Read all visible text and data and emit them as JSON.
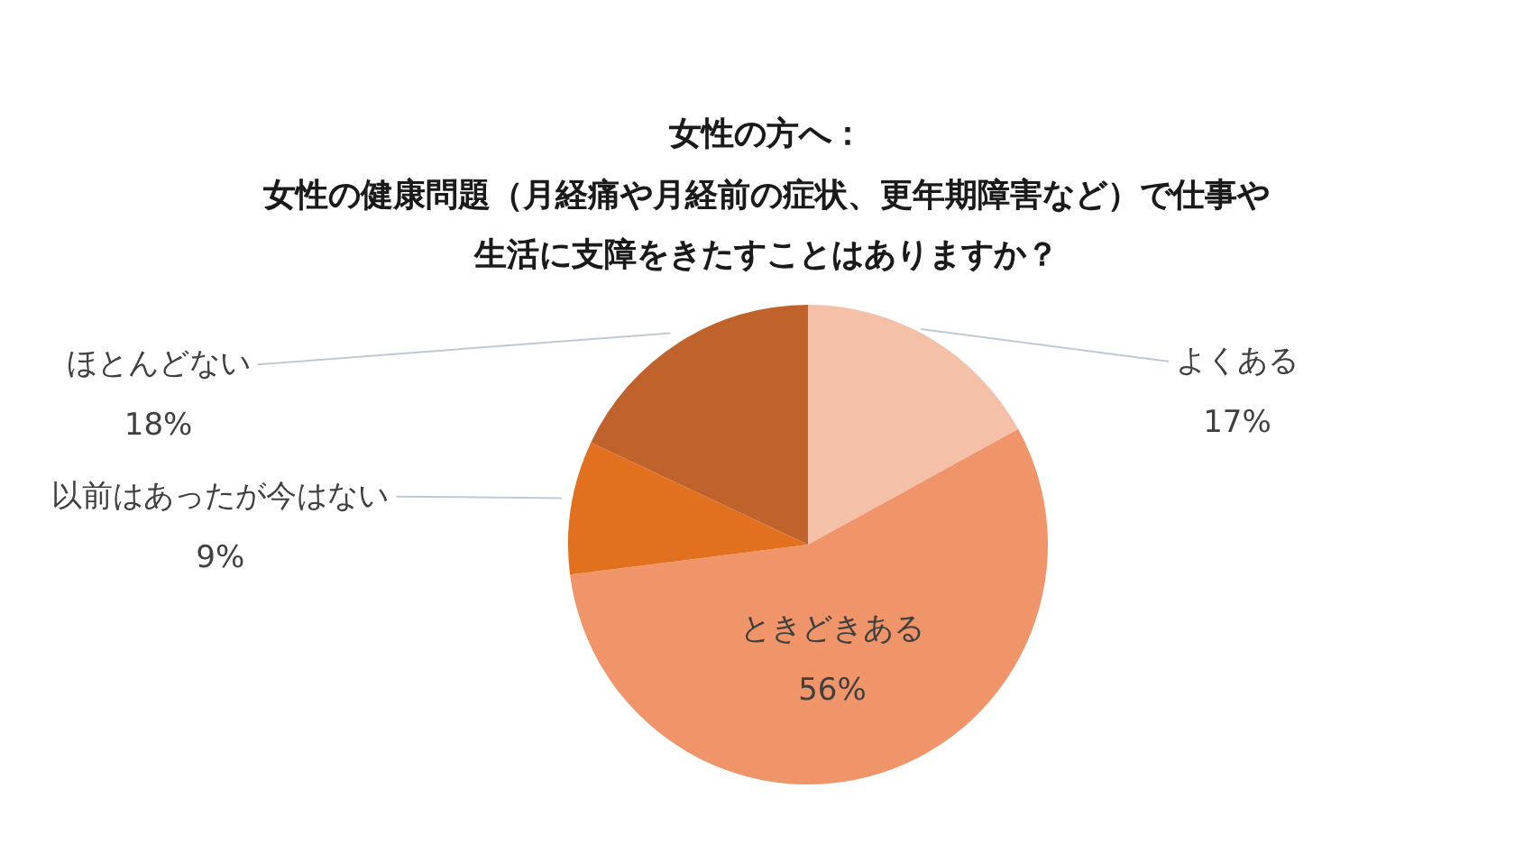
{
  "chart_data": {
    "type": "pie",
    "title": "女性の方へ：",
    "subtitle": "女性の健康問題（月経痛や月経前の症状、更年期障害など）で仕事や生活に支障をきたすことはありますか？",
    "categories": [
      "よくある",
      "ときどきある",
      "以前はあったが今はない",
      "ほとんどない"
    ],
    "values": [
      17,
      56,
      9,
      18
    ],
    "value_labels": [
      "17%",
      "56%",
      "9%",
      "18%"
    ],
    "colors": [
      "#f5c0a8",
      "#f0956a",
      "#e2711f",
      "#c0622c"
    ]
  }
}
